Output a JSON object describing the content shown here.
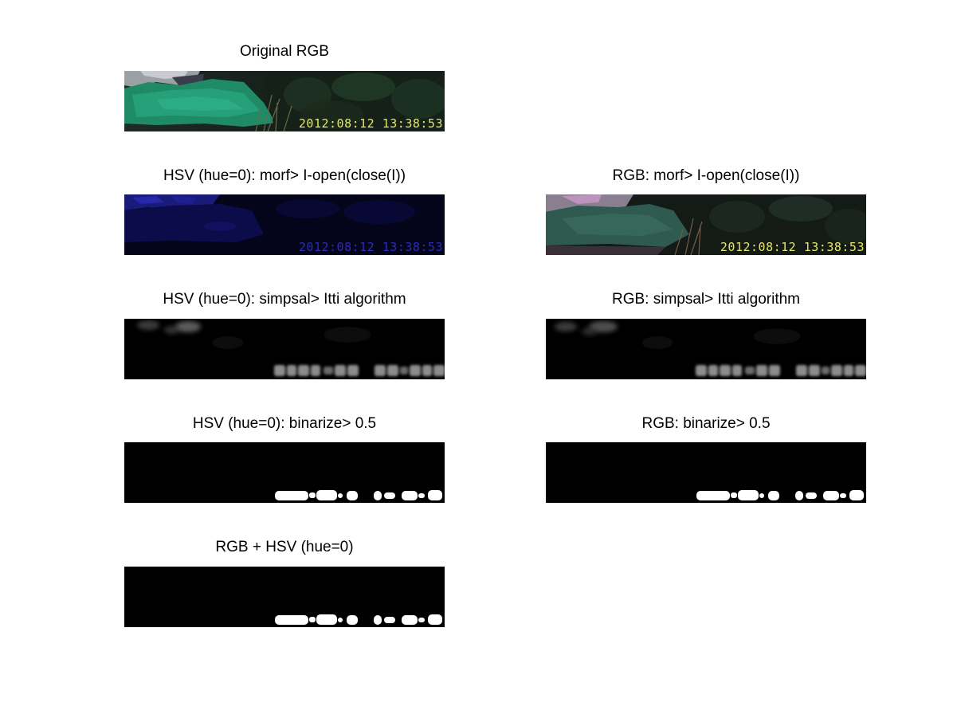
{
  "figure": {
    "panels": {
      "original_rgb": {
        "title": "Original RGB",
        "timestamp": "2012:08:12  13:38:53"
      },
      "hsv_morf": {
        "title": "HSV (hue=0): morf> I-open(close(I))",
        "timestamp": "2012:08:12  13:38:53"
      },
      "rgb_morf": {
        "title": "RGB: morf> I-open(close(I))",
        "timestamp": "2012:08:12  13:38:53"
      },
      "hsv_simpsal": {
        "title": "HSV (hue=0): simpsal> Itti algorithm"
      },
      "rgb_simpsal": {
        "title": "RGB: simpsal> Itti algorithm"
      },
      "hsv_binarize": {
        "title": "HSV (hue=0): binarize> 0.5"
      },
      "rgb_binarize": {
        "title": "RGB: binarize> 0.5"
      },
      "combined": {
        "title": "RGB + HSV (hue=0)"
      }
    }
  }
}
